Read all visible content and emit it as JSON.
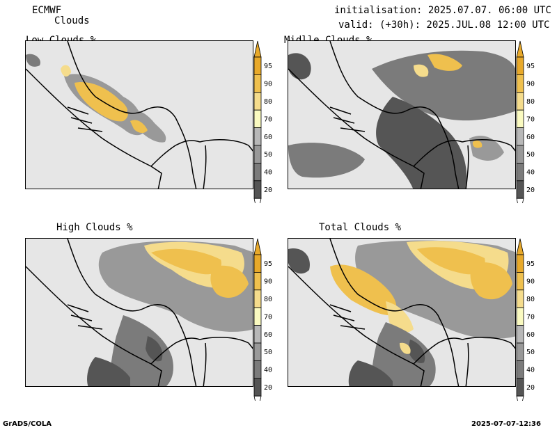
{
  "header": {
    "model": "ECMWF",
    "product": "Clouds",
    "init": "initialisation: 2025.07.07. 06:00 UTC",
    "valid": "valid: (+30h): 2025.JUL.08 12:00 UTC"
  },
  "colorbar": {
    "ticks": [
      "20",
      "40",
      "50",
      "60",
      "70",
      "80",
      "90",
      "95"
    ],
    "colors": [
      "#555555",
      "#7b7b7b",
      "#999999",
      "#b8b8b8",
      "#fafac0",
      "#f5dc8c",
      "#efc04e",
      "#e8a92a"
    ]
  },
  "panels": [
    {
      "title": "Low Clouds %"
    },
    {
      "title": "Midlle Clouds %"
    },
    {
      "title": "High Clouds %"
    },
    {
      "title": "Total Clouds %"
    }
  ],
  "footer": {
    "left": "GrADS/COLA",
    "right": "2025-07-07-12:36"
  }
}
